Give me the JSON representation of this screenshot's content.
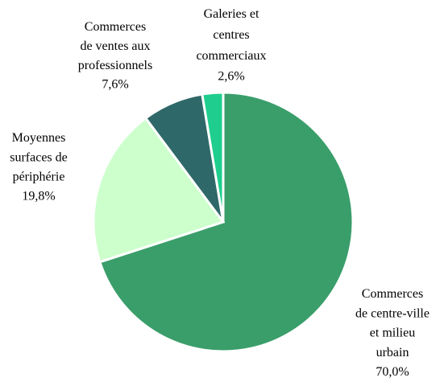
{
  "chart_data": {
    "type": "pie",
    "categories": [
      "Commerces\nde centre-ville\net milieu\nurbain",
      "Moyennes\nsurfaces de\npériphérie",
      "Commerces\nde ventes aux\nprofessionnels",
      "Galeries et\ncentres\ncommerciaux"
    ],
    "values": [
      70.0,
      19.8,
      7.6,
      2.6
    ],
    "value_labels": [
      "70,0%",
      "19,8%",
      "7,6%",
      "2,6%"
    ],
    "colors": [
      "#3a9e6a",
      "#ccffcc",
      "#2f6868",
      "#1fce8e"
    ]
  }
}
